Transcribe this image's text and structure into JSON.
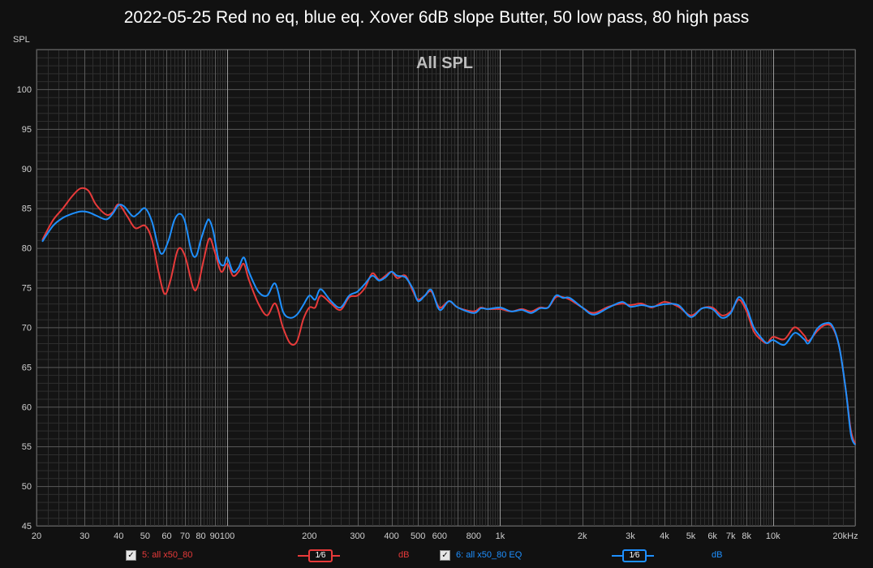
{
  "colors": {
    "background": "#111111",
    "grid_major": "#5a5a5a",
    "grid_minor": "#2e2e2e",
    "red": "#e83a3a",
    "blue": "#1e90ff"
  },
  "chart_data": {
    "type": "line",
    "title": "2022-05-25 Red no eq, blue eq. Xover 6dB slope Butter, 50 low pass, 80 high pass",
    "subtitle": "All SPL",
    "ylabel": "SPL",
    "xscale": "log",
    "xlim": [
      20,
      20000
    ],
    "ylim": [
      45,
      105
    ],
    "x_tick_labels": [
      {
        "v": 20,
        "t": "20"
      },
      {
        "v": 30,
        "t": "30"
      },
      {
        "v": 40,
        "t": "40"
      },
      {
        "v": 50,
        "t": "50"
      },
      {
        "v": 60,
        "t": "60"
      },
      {
        "v": 70,
        "t": "70"
      },
      {
        "v": 80,
        "t": "80"
      },
      {
        "v": 90,
        "t": "90"
      },
      {
        "v": 100,
        "t": "100"
      },
      {
        "v": 200,
        "t": "200"
      },
      {
        "v": 300,
        "t": "300"
      },
      {
        "v": 400,
        "t": "400"
      },
      {
        "v": 500,
        "t": "500"
      },
      {
        "v": 600,
        "t": "600"
      },
      {
        "v": 800,
        "t": "800"
      },
      {
        "v": 1000,
        "t": "1k"
      },
      {
        "v": 2000,
        "t": "2k"
      },
      {
        "v": 3000,
        "t": "3k"
      },
      {
        "v": 4000,
        "t": "4k"
      },
      {
        "v": 5000,
        "t": "5k"
      },
      {
        "v": 6000,
        "t": "6k"
      },
      {
        "v": 7000,
        "t": "7k"
      },
      {
        "v": 8000,
        "t": "8k"
      },
      {
        "v": 10000,
        "t": "10k"
      },
      {
        "v": 20000,
        "t": "20kHz"
      }
    ],
    "y_ticks": [
      45,
      50,
      55,
      60,
      65,
      70,
      75,
      80,
      85,
      90,
      95,
      100
    ],
    "grid": true,
    "series": [
      {
        "name": "5: all x50_80",
        "color": "#e83a3a",
        "points": [
          [
            21,
            81
          ],
          [
            23,
            83.5
          ],
          [
            25,
            85
          ],
          [
            27,
            86.5
          ],
          [
            29,
            87.5
          ],
          [
            31,
            87.2
          ],
          [
            33,
            85.5
          ],
          [
            36,
            84.2
          ],
          [
            38,
            84.5
          ],
          [
            40,
            85.5
          ],
          [
            43,
            84
          ],
          [
            46,
            82.5
          ],
          [
            50,
            82.8
          ],
          [
            53,
            81
          ],
          [
            56,
            77
          ],
          [
            59,
            74.2
          ],
          [
            62,
            76
          ],
          [
            66,
            79.8
          ],
          [
            70,
            79
          ],
          [
            75,
            75
          ],
          [
            78,
            75.2
          ],
          [
            82,
            78.5
          ],
          [
            86,
            81.2
          ],
          [
            90,
            79.5
          ],
          [
            95,
            77
          ],
          [
            100,
            78
          ],
          [
            105,
            76.5
          ],
          [
            110,
            77
          ],
          [
            115,
            78
          ],
          [
            120,
            76
          ],
          [
            130,
            73
          ],
          [
            140,
            71.5
          ],
          [
            150,
            73
          ],
          [
            160,
            70
          ],
          [
            170,
            68
          ],
          [
            180,
            68.2
          ],
          [
            190,
            71
          ],
          [
            200,
            72.5
          ],
          [
            210,
            72.5
          ],
          [
            220,
            74
          ],
          [
            240,
            73
          ],
          [
            260,
            72.2
          ],
          [
            280,
            73.8
          ],
          [
            300,
            74
          ],
          [
            320,
            75
          ],
          [
            340,
            76.8
          ],
          [
            360,
            76
          ],
          [
            380,
            76.5
          ],
          [
            400,
            77
          ],
          [
            420,
            76.2
          ],
          [
            450,
            76.5
          ],
          [
            480,
            74.5
          ],
          [
            500,
            73.5
          ],
          [
            530,
            74
          ],
          [
            560,
            74.5
          ],
          [
            600,
            72.5
          ],
          [
            650,
            73.3
          ],
          [
            700,
            72.5
          ],
          [
            800,
            72
          ],
          [
            850,
            72.5
          ],
          [
            900,
            72.3
          ],
          [
            1000,
            72.3
          ],
          [
            1100,
            72
          ],
          [
            1200,
            72.3
          ],
          [
            1300,
            72
          ],
          [
            1400,
            72.5
          ],
          [
            1500,
            72.5
          ],
          [
            1600,
            73.8
          ],
          [
            1700,
            73.8
          ],
          [
            1800,
            73.5
          ],
          [
            2000,
            72.5
          ],
          [
            2200,
            71.8
          ],
          [
            2500,
            72.6
          ],
          [
            2800,
            73
          ],
          [
            3000,
            72.8
          ],
          [
            3300,
            73
          ],
          [
            3600,
            72.5
          ],
          [
            4000,
            73.2
          ],
          [
            4500,
            72.6
          ],
          [
            5000,
            71.5
          ],
          [
            5500,
            72.4
          ],
          [
            6000,
            72.5
          ],
          [
            6500,
            71.5
          ],
          [
            7000,
            72
          ],
          [
            7500,
            73.5
          ],
          [
            8000,
            72
          ],
          [
            8500,
            69.5
          ],
          [
            9000,
            68.5
          ],
          [
            9500,
            68
          ],
          [
            10000,
            68.8
          ],
          [
            11000,
            68.5
          ],
          [
            12000,
            70
          ],
          [
            13000,
            69
          ],
          [
            13500,
            68.3
          ],
          [
            14500,
            69.5
          ],
          [
            15500,
            70.3
          ],
          [
            16500,
            70
          ],
          [
            17500,
            67.5
          ],
          [
            18500,
            62
          ],
          [
            19300,
            57
          ],
          [
            20000,
            55.3
          ]
        ]
      },
      {
        "name": "6: all x50_80 EQ",
        "color": "#1e90ff",
        "points": [
          [
            21,
            80.8
          ],
          [
            23,
            82.8
          ],
          [
            25,
            83.8
          ],
          [
            27,
            84.3
          ],
          [
            29,
            84.6
          ],
          [
            31,
            84.5
          ],
          [
            33,
            84.1
          ],
          [
            36,
            83.6
          ],
          [
            38,
            84.3
          ],
          [
            40,
            85.4
          ],
          [
            42,
            85.2
          ],
          [
            45,
            84
          ],
          [
            47,
            84.3
          ],
          [
            50,
            85
          ],
          [
            53,
            83.3
          ],
          [
            56,
            80
          ],
          [
            58,
            79.3
          ],
          [
            61,
            81
          ],
          [
            64,
            83.5
          ],
          [
            67,
            84.3
          ],
          [
            70,
            83.3
          ],
          [
            74,
            79.5
          ],
          [
            77,
            79
          ],
          [
            80,
            81
          ],
          [
            84,
            83.2
          ],
          [
            86,
            83.5
          ],
          [
            89,
            82
          ],
          [
            93,
            78.5
          ],
          [
            97,
            77.8
          ],
          [
            100,
            78.8
          ],
          [
            105,
            77
          ],
          [
            110,
            77.5
          ],
          [
            115,
            78.8
          ],
          [
            120,
            77
          ],
          [
            130,
            74.5
          ],
          [
            140,
            74
          ],
          [
            150,
            75.5
          ],
          [
            160,
            72
          ],
          [
            170,
            71.2
          ],
          [
            180,
            71.6
          ],
          [
            190,
            72.8
          ],
          [
            200,
            74
          ],
          [
            210,
            73.5
          ],
          [
            220,
            74.8
          ],
          [
            240,
            73.3
          ],
          [
            260,
            72.5
          ],
          [
            280,
            74
          ],
          [
            300,
            74.5
          ],
          [
            320,
            75.5
          ],
          [
            340,
            76.5
          ],
          [
            360,
            75.9
          ],
          [
            380,
            76.3
          ],
          [
            400,
            77
          ],
          [
            420,
            76.5
          ],
          [
            450,
            76.3
          ],
          [
            480,
            74.8
          ],
          [
            500,
            73.3
          ],
          [
            530,
            74
          ],
          [
            560,
            74.7
          ],
          [
            600,
            72.2
          ],
          [
            650,
            73.3
          ],
          [
            700,
            72.5
          ],
          [
            800,
            71.8
          ],
          [
            850,
            72.4
          ],
          [
            900,
            72.3
          ],
          [
            1000,
            72.5
          ],
          [
            1100,
            72
          ],
          [
            1200,
            72.2
          ],
          [
            1300,
            71.8
          ],
          [
            1400,
            72.4
          ],
          [
            1500,
            72.5
          ],
          [
            1600,
            74
          ],
          [
            1700,
            73.7
          ],
          [
            1800,
            73.7
          ],
          [
            2000,
            72.5
          ],
          [
            2200,
            71.6
          ],
          [
            2500,
            72.5
          ],
          [
            2800,
            73.2
          ],
          [
            3000,
            72.6
          ],
          [
            3300,
            72.8
          ],
          [
            3600,
            72.6
          ],
          [
            4000,
            72.9
          ],
          [
            4500,
            72.8
          ],
          [
            5000,
            71.3
          ],
          [
            5500,
            72.4
          ],
          [
            6000,
            72.3
          ],
          [
            6500,
            71.2
          ],
          [
            7000,
            71.8
          ],
          [
            7500,
            73.8
          ],
          [
            8000,
            72.5
          ],
          [
            8500,
            70
          ],
          [
            9000,
            68.8
          ],
          [
            9500,
            68
          ],
          [
            10000,
            68.4
          ],
          [
            11000,
            67.8
          ],
          [
            12000,
            69.3
          ],
          [
            13000,
            68.5
          ],
          [
            13500,
            68
          ],
          [
            14500,
            69.8
          ],
          [
            15500,
            70.5
          ],
          [
            16500,
            70.2
          ],
          [
            17500,
            67.5
          ],
          [
            18500,
            62
          ],
          [
            19300,
            56.5
          ],
          [
            20000,
            55.2
          ]
        ]
      }
    ]
  },
  "legend": [
    {
      "checked": "✓",
      "label": "5: all x50_80",
      "smoothing": "1⁄6",
      "unit": "dB"
    },
    {
      "checked": "✓",
      "label": "6: all x50_80 EQ",
      "smoothing": "1⁄6",
      "unit": "dB"
    }
  ]
}
